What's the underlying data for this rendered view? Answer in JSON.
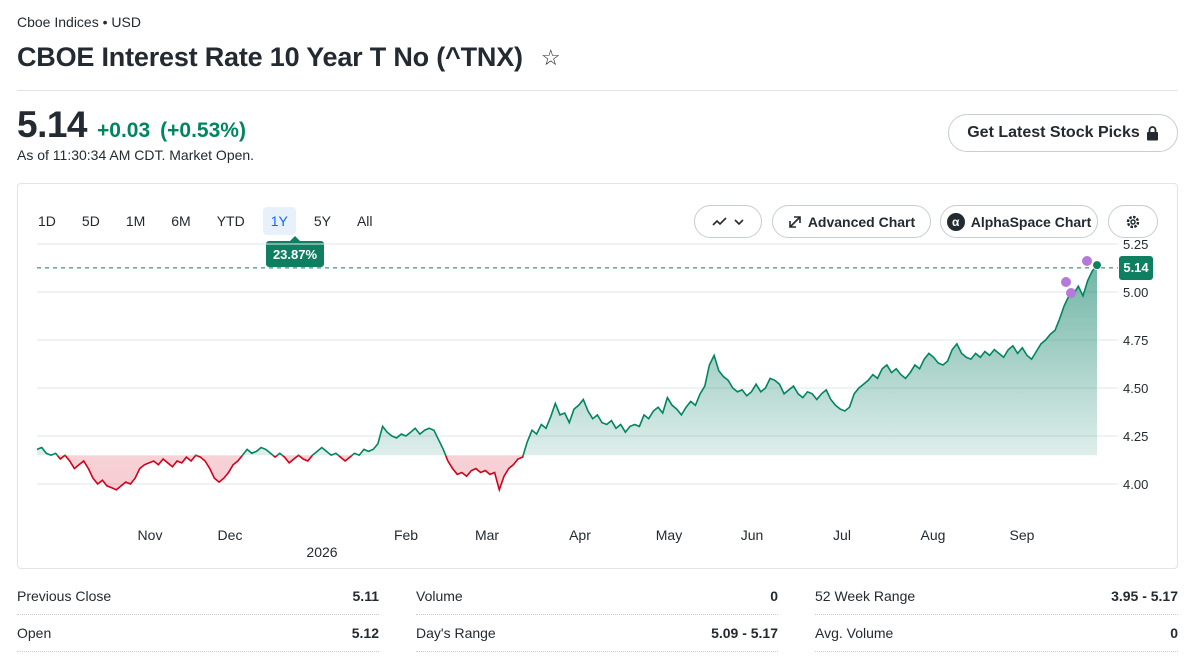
{
  "header": {
    "exchange": "Cboe Indices • USD",
    "title": "CBOE Interest Rate 10 Year T No (^TNX)",
    "star_icon": "☆"
  },
  "quote": {
    "price": "5.14",
    "change": "+0.03",
    "change_pct": "(+0.53%)",
    "as_of": "As of 11:30:34 AM CDT. Market Open.",
    "up_color": "#008560",
    "down_color": "#d0021b"
  },
  "cta": {
    "label": "Get Latest Stock Picks"
  },
  "chart_controls": {
    "ranges": [
      "1D",
      "5D",
      "1M",
      "6M",
      "YTD",
      "1Y",
      "5Y",
      "All"
    ],
    "active_range": "1Y",
    "performance_badge": "23.87%",
    "advanced_chart": "Advanced Chart",
    "alphaspace_chart": "AlphaSpace Chart"
  },
  "chart_data": {
    "type": "area",
    "x_month_labels": [
      "Nov",
      "Dec",
      "Feb",
      "Mar",
      "Apr",
      "May",
      "Jun",
      "Jul",
      "Aug",
      "Sep"
    ],
    "year_label": "2026",
    "y_ticks": [
      "5.25",
      "5.00",
      "4.75",
      "4.50",
      "4.25",
      "4.00"
    ],
    "ylim": [
      3.88,
      5.27
    ],
    "baseline": 4.15,
    "previous_close": 5.11,
    "current_value": "5.14",
    "grid": true,
    "values": [
      4.18,
      4.19,
      4.16,
      4.15,
      4.16,
      4.13,
      4.15,
      4.12,
      4.08,
      4.1,
      4.12,
      4.08,
      4.03,
      4.0,
      4.02,
      3.99,
      3.98,
      3.97,
      3.99,
      4.01,
      4.0,
      4.03,
      4.08,
      4.1,
      4.11,
      4.12,
      4.1,
      4.13,
      4.11,
      4.09,
      4.12,
      4.11,
      4.14,
      4.12,
      4.15,
      4.14,
      4.12,
      4.08,
      4.03,
      4.01,
      4.03,
      4.06,
      4.1,
      4.12,
      4.15,
      4.18,
      4.16,
      4.17,
      4.19,
      4.18,
      4.16,
      4.14,
      4.16,
      4.14,
      4.11,
      4.13,
      4.15,
      4.13,
      4.12,
      4.15,
      4.17,
      4.19,
      4.17,
      4.15,
      4.16,
      4.14,
      4.12,
      4.14,
      4.16,
      4.15,
      4.18,
      4.17,
      4.18,
      4.21,
      4.3,
      4.27,
      4.25,
      4.24,
      4.26,
      4.25,
      4.27,
      4.29,
      4.26,
      4.28,
      4.29,
      4.28,
      4.23,
      4.18,
      4.12,
      4.08,
      4.05,
      4.06,
      4.04,
      4.07,
      4.08,
      4.06,
      4.07,
      4.05,
      4.06,
      3.97,
      4.04,
      4.08,
      4.1,
      4.13,
      4.14,
      4.22,
      4.28,
      4.26,
      4.31,
      4.29,
      4.35,
      4.42,
      4.36,
      4.37,
      4.32,
      4.39,
      4.41,
      4.44,
      4.38,
      4.34,
      4.36,
      4.32,
      4.31,
      4.33,
      4.29,
      4.31,
      4.27,
      4.3,
      4.31,
      4.3,
      4.36,
      4.34,
      4.38,
      4.4,
      4.37,
      4.45,
      4.41,
      4.39,
      4.36,
      4.4,
      4.43,
      4.41,
      4.47,
      4.51,
      4.62,
      4.67,
      4.59,
      4.56,
      4.54,
      4.5,
      4.48,
      4.49,
      4.46,
      4.48,
      4.52,
      4.48,
      4.5,
      4.55,
      4.54,
      4.52,
      4.47,
      4.49,
      4.51,
      4.47,
      4.45,
      4.48,
      4.47,
      4.44,
      4.47,
      4.49,
      4.44,
      4.41,
      4.39,
      4.38,
      4.4,
      4.47,
      4.5,
      4.52,
      4.54,
      4.57,
      4.55,
      4.6,
      4.62,
      4.58,
      4.6,
      4.57,
      4.55,
      4.58,
      4.62,
      4.6,
      4.65,
      4.68,
      4.66,
      4.63,
      4.62,
      4.64,
      4.7,
      4.73,
      4.68,
      4.66,
      4.65,
      4.68,
      4.66,
      4.69,
      4.67,
      4.7,
      4.68,
      4.66,
      4.7,
      4.72,
      4.68,
      4.71,
      4.67,
      4.65,
      4.69,
      4.73,
      4.75,
      4.78,
      4.8,
      4.86,
      4.93,
      4.98,
      4.99,
      5.03,
      4.98,
      5.06,
      5.11,
      5.14
    ]
  },
  "stats": [
    {
      "label": "Previous Close",
      "value": "5.11"
    },
    {
      "label": "Volume",
      "value": "0"
    },
    {
      "label": "52 Week Range",
      "value": "3.95 - 5.17"
    },
    {
      "label": "Open",
      "value": "5.12"
    },
    {
      "label": "Day's Range",
      "value": "5.09 - 5.17"
    },
    {
      "label": "Avg. Volume",
      "value": "0"
    }
  ]
}
